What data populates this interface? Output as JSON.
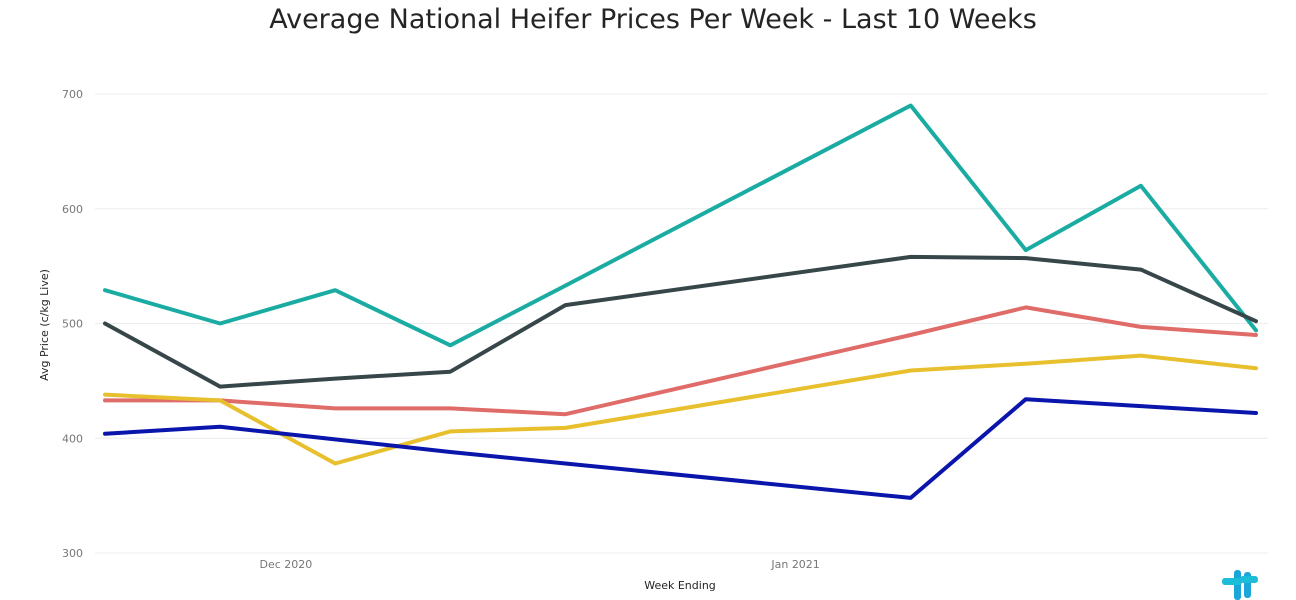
{
  "chart_data": {
    "type": "line",
    "title": "Average National Heifer Prices Per Week - Last 10 Weeks",
    "xlabel": "Week Ending",
    "ylabel": "Avg Price (c/kg Live)",
    "ylim": [
      300,
      700
    ],
    "yticks": [
      300,
      400,
      500,
      600,
      700
    ],
    "xticks": [
      "Dec 2020",
      "Jan 2021"
    ],
    "grid": true,
    "x": [
      "2020-11-20",
      "2020-11-27",
      "2020-12-04",
      "2020-12-11",
      "2020-12-18",
      "2021-01-08",
      "2021-01-15",
      "2021-01-22",
      "2021-01-29"
    ],
    "series": [
      {
        "color": "#1aaca2",
        "values": [
          529,
          500,
          529,
          481,
          533,
          690,
          564,
          620,
          494
        ]
      },
      {
        "color": "#374649",
        "values": [
          500,
          445,
          452,
          458,
          516,
          558,
          557,
          547,
          502
        ]
      },
      {
        "color": "#e06c69",
        "values": [
          433,
          433,
          426,
          426,
          421,
          490,
          514,
          497,
          490
        ]
      },
      {
        "color": "#e8c02e",
        "values": [
          438,
          433,
          378,
          406,
          409,
          459,
          465,
          472,
          461
        ]
      },
      {
        "color": "#0a15ab",
        "values": [
          404,
          410,
          399,
          388,
          378,
          348,
          434,
          428,
          422
        ]
      }
    ]
  },
  "logo": {
    "icon": "logo-icon",
    "colors": [
      "#1aa6d9",
      "#1dbcd8"
    ]
  }
}
